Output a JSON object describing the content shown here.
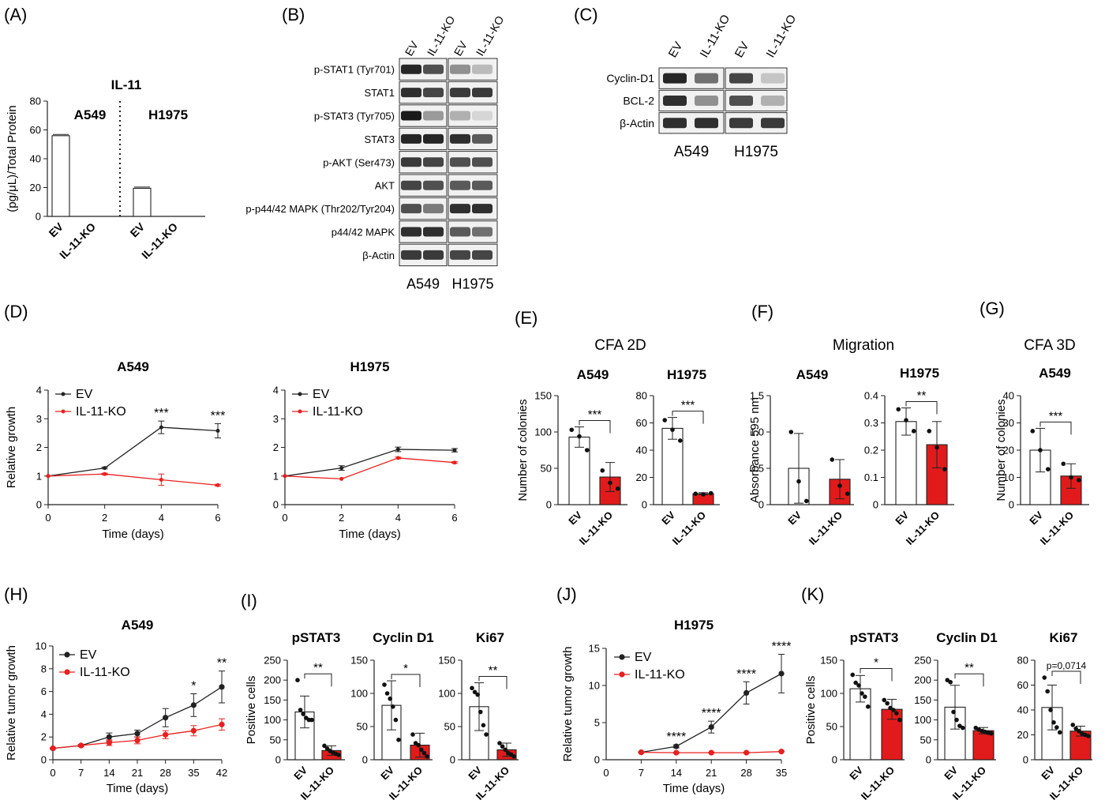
{
  "colors": {
    "control": "#222222",
    "knockout": "#e8201e",
    "knockout_fill": "#e11b1b",
    "blot_band": "#1a1a1a"
  },
  "panel_letters": {
    "A": "(A)",
    "B": "(B)",
    "C": "(C)",
    "D": "(D)",
    "E": "(E)",
    "F": "(F)",
    "G": "(G)",
    "H": "(H)",
    "I": "(I)",
    "J": "(J)",
    "K": "(K)"
  },
  "group_titles": {
    "cfa2d": "CFA 2D",
    "migration": "Migration",
    "cfa3d": "CFA 3D"
  },
  "blot_B": {
    "lanes": [
      "EV",
      "IL-11-KO",
      "EV",
      "IL-11-KO"
    ],
    "rows": [
      "p-STAT1 (Tyr701)",
      "STAT1",
      "p-STAT3 (Tyr705)",
      "STAT3",
      "p-AKT (Ser473)",
      "AKT",
      "p-p44/42 MAPK (Thr202/Tyr204)",
      "p44/42 MAPK",
      "β-Actin"
    ],
    "cell_lines": [
      "A549",
      "H1975"
    ],
    "intensity": [
      [
        0.95,
        0.75,
        0.45,
        0.25
      ],
      [
        0.9,
        0.8,
        0.85,
        0.85
      ],
      [
        1.0,
        0.4,
        0.3,
        0.12
      ],
      [
        0.95,
        0.95,
        0.9,
        0.7
      ],
      [
        0.85,
        0.8,
        0.75,
        0.75
      ],
      [
        0.8,
        0.75,
        0.7,
        0.7
      ],
      [
        0.75,
        0.55,
        0.9,
        0.9
      ],
      [
        0.9,
        0.9,
        0.7,
        0.6
      ],
      [
        0.85,
        0.85,
        0.8,
        0.8
      ]
    ]
  },
  "blot_C": {
    "lanes": [
      "EV",
      "IL-11-KO",
      "EV",
      "IL-11-KO"
    ],
    "rows": [
      "Cyclin-D1",
      "BCL-2",
      "β-Actin"
    ],
    "cell_lines": [
      "A549",
      "H1975"
    ],
    "intensity": [
      [
        0.95,
        0.6,
        0.8,
        0.2
      ],
      [
        0.9,
        0.45,
        0.75,
        0.3
      ],
      [
        0.9,
        0.9,
        0.85,
        0.85
      ]
    ]
  },
  "chart_data": [
    {
      "id": "A",
      "type": "bar",
      "title": "IL-11",
      "ylabel": "(pg/μL)/Total Protein",
      "ylim": [
        0,
        80
      ],
      "yticks": [
        0,
        20,
        40,
        60,
        80
      ],
      "categories": [
        "EV",
        "IL-11-KO",
        "EV",
        "IL-11-KO"
      ],
      "values": [
        56,
        0,
        19.5,
        0
      ],
      "annotations": [
        "A549",
        "H1975"
      ]
    },
    {
      "id": "D",
      "type": "line",
      "title": "A549",
      "xlabel": "Time (days)",
      "ylabel": "Relative growth",
      "ylim": [
        0,
        4
      ],
      "yticks": [
        0,
        1,
        2,
        3,
        4
      ],
      "x": [
        0,
        2,
        4,
        6
      ],
      "series": [
        {
          "name": "EV",
          "values": [
            1,
            1.28,
            2.7,
            2.58
          ],
          "err": [
            0,
            0.03,
            0.22,
            0.25
          ]
        },
        {
          "name": "IL-11-KO",
          "values": [
            1,
            1.07,
            0.87,
            0.68
          ],
          "err": [
            0,
            0.03,
            0.2,
            0.03
          ]
        }
      ],
      "sig": [
        "",
        "",
        "***",
        "***"
      ],
      "legend": "top-left"
    },
    {
      "id": "D2",
      "type": "line",
      "title": "H1975",
      "xlabel": "Time (days)",
      "ylabel": "",
      "ylim": [
        0,
        4
      ],
      "yticks": [
        0,
        1,
        2,
        3,
        4
      ],
      "x": [
        0,
        2,
        4,
        6
      ],
      "series": [
        {
          "name": "EV",
          "values": [
            1,
            1.28,
            1.93,
            1.9
          ],
          "err": [
            0,
            0.08,
            0.08,
            0.06
          ]
        },
        {
          "name": "IL-11-KO",
          "values": [
            1,
            0.9,
            1.63,
            1.47
          ],
          "err": [
            0,
            0.02,
            0.03,
            0.03
          ]
        }
      ],
      "sig": [
        "",
        "",
        "",
        ""
      ],
      "legend": "top-left"
    },
    {
      "id": "E1",
      "type": "bar",
      "title": "A549",
      "ylabel": "Number of colonies",
      "ylim": [
        0,
        150
      ],
      "yticks": [
        0,
        50,
        100,
        150
      ],
      "categories": [
        "EV",
        "IL-11-KO"
      ],
      "values": [
        93,
        38
      ],
      "err": [
        14,
        20
      ],
      "points": [
        [
          103,
          94,
          75
        ],
        [
          47,
          30,
          22
        ]
      ],
      "sig": "***"
    },
    {
      "id": "E2",
      "type": "bar",
      "title": "H1975",
      "ylabel": "",
      "ylim": [
        0,
        80
      ],
      "yticks": [
        0,
        20,
        40,
        60,
        80
      ],
      "categories": [
        "EV",
        "IL-11-KO"
      ],
      "values": [
        56,
        8
      ],
      "err": [
        8,
        0.8
      ],
      "points": [
        [
          62,
          55,
          47
        ],
        [
          8,
          7.5,
          8.4
        ]
      ],
      "sig": "***"
    },
    {
      "id": "F1",
      "type": "bar",
      "title": "A549",
      "ylabel": "Absorbance 595 nm",
      "ylim": [
        0,
        1.5
      ],
      "yticks": [
        0,
        0.5,
        1.0,
        1.5
      ],
      "categories": [
        "EV",
        "IL-11-KO"
      ],
      "values": [
        0.5,
        0.35
      ],
      "err": [
        0.48,
        0.27
      ],
      "points": [
        [
          1.0,
          0.32,
          0.05
        ],
        [
          0.62,
          0.26,
          0.15
        ]
      ],
      "sig": ""
    },
    {
      "id": "F2",
      "type": "bar",
      "title": "H1975",
      "ylabel": "",
      "ylim": [
        0,
        0.4
      ],
      "yticks": [
        0,
        0.1,
        0.2,
        0.3,
        0.4
      ],
      "categories": [
        "EV",
        "IL-11-KO"
      ],
      "values": [
        0.305,
        0.22
      ],
      "err": [
        0.05,
        0.085
      ],
      "points": [
        [
          0.35,
          0.31,
          0.27
        ],
        [
          0.27,
          0.21,
          0.13
        ]
      ],
      "sig": "**"
    },
    {
      "id": "G",
      "type": "bar",
      "title": "A549",
      "ylabel": "Number of colonies",
      "ylim": [
        0,
        40
      ],
      "yticks": [
        0,
        10,
        20,
        30,
        40
      ],
      "categories": [
        "EV",
        "IL-11-KO"
      ],
      "values": [
        20,
        10.5
      ],
      "err": [
        8,
        4.5
      ],
      "points": [
        [
          27,
          20,
          13
        ],
        [
          15,
          10,
          9
        ]
      ],
      "sig": "***"
    },
    {
      "id": "H",
      "type": "line",
      "title": "A549",
      "xlabel": "Time (days)",
      "ylabel": "Relative tumor growth",
      "ylim": [
        0,
        10
      ],
      "yticks": [
        0,
        2,
        4,
        6,
        8,
        10
      ],
      "x": [
        0,
        7,
        14,
        21,
        28,
        35,
        42
      ],
      "series": [
        {
          "name": "EV",
          "values": [
            1,
            1.25,
            2.0,
            2.3,
            3.7,
            4.8,
            6.4
          ],
          "err": [
            0.05,
            0.1,
            0.35,
            0.3,
            0.8,
            1.0,
            1.4
          ]
        },
        {
          "name": "IL-11-KO",
          "values": [
            1,
            1.25,
            1.5,
            1.7,
            2.2,
            2.55,
            3.1
          ],
          "err": [
            0.05,
            0.1,
            0.25,
            0.3,
            0.35,
            0.45,
            0.5
          ]
        }
      ],
      "sig": [
        "",
        "",
        "",
        "",
        "",
        "*",
        "**"
      ],
      "legend": "top-left"
    },
    {
      "id": "I1",
      "type": "bar",
      "title": "pSTAT3",
      "ylabel": "Positive cells",
      "ylim": [
        0,
        250
      ],
      "yticks": [
        0,
        50,
        100,
        150,
        200,
        250
      ],
      "categories": [
        "EV",
        "IL-11-KO"
      ],
      "values": [
        120,
        23
      ],
      "err": [
        40,
        12
      ],
      "points": [
        [
          200,
          125,
          115,
          105,
          100,
          100
        ],
        [
          35,
          28,
          22,
          18,
          15,
          12
        ]
      ],
      "sig": "**"
    },
    {
      "id": "I2",
      "type": "bar",
      "title": "Cyclin D1",
      "ylabel": "",
      "ylim": [
        0,
        150
      ],
      "yticks": [
        0,
        50,
        100,
        150
      ],
      "categories": [
        "EV",
        "IL-11-KO"
      ],
      "values": [
        82,
        22
      ],
      "err": [
        37,
        18
      ],
      "points": [
        [
          113,
          100,
          92,
          80,
          60,
          30
        ],
        [
          38,
          25,
          22,
          15,
          10,
          5
        ]
      ],
      "sig": "*"
    },
    {
      "id": "I3",
      "type": "bar",
      "title": "Ki67",
      "ylabel": "",
      "ylim": [
        0,
        150
      ],
      "yticks": [
        0,
        50,
        100,
        150
      ],
      "categories": [
        "EV",
        "IL-11-KO"
      ],
      "values": [
        80,
        15
      ],
      "err": [
        36,
        10
      ],
      "points": [
        [
          108,
          102,
          98,
          72,
          52,
          38
        ],
        [
          25,
          20,
          15,
          10,
          8,
          5
        ]
      ],
      "sig": "**"
    },
    {
      "id": "J",
      "type": "line",
      "title": "H1975",
      "xlabel": "Time (days)",
      "ylabel": "Relative tumor growth",
      "ylim": [
        0,
        15
      ],
      "yticks": [
        0,
        5,
        10,
        15
      ],
      "x": [
        7,
        14,
        21,
        28,
        35
      ],
      "series": [
        {
          "name": "EV",
          "values": [
            1,
            1.8,
            4.4,
            9.0,
            11.6
          ],
          "err": [
            0.05,
            0.2,
            0.8,
            1.5,
            2.6
          ]
        },
        {
          "name": "IL-11-KO",
          "values": [
            1,
            0.95,
            0.95,
            0.95,
            1.1
          ],
          "err": [
            0.05,
            0.05,
            0.05,
            0.05,
            0.05
          ]
        }
      ],
      "sig": [
        "",
        "****",
        "****",
        "****",
        "****"
      ],
      "legend": "top-left"
    },
    {
      "id": "K1",
      "type": "bar",
      "title": "pSTAT3",
      "ylabel": "Positive cells",
      "ylim": [
        0,
        150
      ],
      "yticks": [
        0,
        50,
        100,
        150
      ],
      "categories": [
        "EV",
        "IL-11-KO"
      ],
      "values": [
        107,
        76
      ],
      "err": [
        20,
        15
      ],
      "points": [
        [
          128,
          116,
          112,
          100,
          95,
          80
        ],
        [
          90,
          85,
          78,
          75,
          70,
          60
        ]
      ],
      "sig": "*"
    },
    {
      "id": "K2",
      "type": "bar",
      "title": "Cyclin D1",
      "ylabel": "",
      "ylim": [
        0,
        250
      ],
      "yticks": [
        0,
        50,
        100,
        150,
        200,
        250
      ],
      "categories": [
        "EV",
        "IL-11-KO"
      ],
      "values": [
        132,
        73
      ],
      "err": [
        55,
        8
      ],
      "points": [
        [
          200,
          195,
          120,
          100,
          85,
          80
        ],
        [
          80,
          76,
          72,
          70,
          68,
          66
        ]
      ],
      "sig": "**"
    },
    {
      "id": "K3",
      "type": "bar",
      "title": "Ki67",
      "ylabel": "",
      "ylim": [
        0,
        80
      ],
      "yticks": [
        0,
        20,
        40,
        60,
        80
      ],
      "categories": [
        "EV",
        "IL-11-KO"
      ],
      "values": [
        42,
        23
      ],
      "err": [
        18,
        4
      ],
      "points": [
        [
          66,
          55,
          40,
          30,
          26,
          22
        ],
        [
          28,
          25,
          23,
          21,
          20,
          19
        ]
      ],
      "sig": "p=0,0714"
    }
  ]
}
